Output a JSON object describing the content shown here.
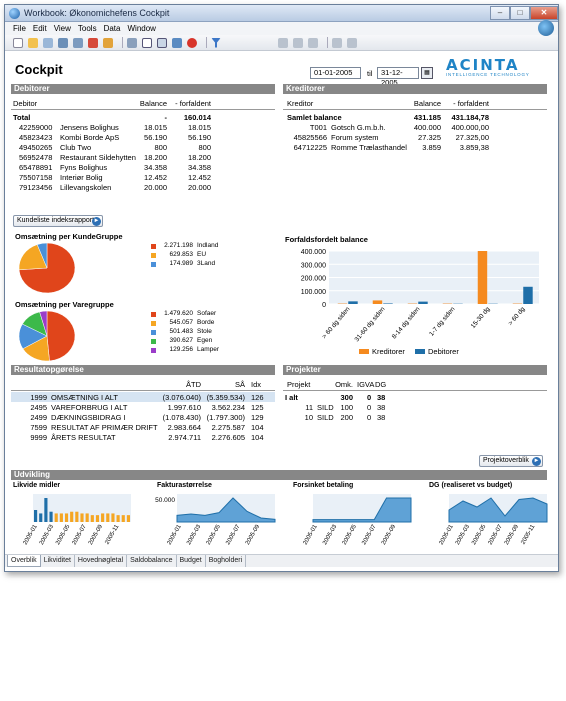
{
  "window": {
    "title": "Workbook: Økonomichefens Cockpit",
    "min": "–",
    "max": "□",
    "close": "✕"
  },
  "menu": [
    "File",
    "Edit",
    "View",
    "Tools",
    "Data",
    "Window"
  ],
  "page": {
    "title": "Cockpit",
    "date_from": "01-01-2005",
    "til": "til",
    "date_to": "31-12-2005",
    "logo_name": "ACINTA",
    "logo_tagline": "INTELLIGENCE TECHNOLOGY"
  },
  "debitorer": {
    "title": "Debitorer",
    "headers": [
      "Debitor",
      "Balance",
      "- forfaldent"
    ],
    "total": {
      "label": "Total",
      "balance": "-",
      "forfaldent": "160.014"
    },
    "rows": [
      {
        "id": "42259000",
        "name": "Jensens Bolighus",
        "balance": "18.015",
        "forfaldent": "18.015"
      },
      {
        "id": "45823423",
        "name": "Kombi Borde ApS",
        "balance": "56.190",
        "forfaldent": "56.190"
      },
      {
        "id": "49450265",
        "name": "Club Two",
        "balance": "800",
        "forfaldent": "800"
      },
      {
        "id": "56952478",
        "name": "Restaurant Sildehytten",
        "balance": "18.200",
        "forfaldent": "18.200"
      },
      {
        "id": "65478891",
        "name": "Fyns Bolighus",
        "balance": "34.358",
        "forfaldent": "34.358"
      },
      {
        "id": "75507158",
        "name": "Interiør Bolig",
        "balance": "12.452",
        "forfaldent": "12.452"
      },
      {
        "id": "79123456",
        "name": "Lillevangskolen",
        "balance": "20.000",
        "forfaldent": "20.000"
      }
    ],
    "button": "Kundeliste indeksrapport"
  },
  "kreditorer": {
    "title": "Kreditorer",
    "headers": [
      "Kreditor",
      "Balance",
      "- forfaldent"
    ],
    "total": {
      "label": "Samlet balance",
      "balance": "431.185",
      "forfaldent": "431.184,78"
    },
    "rows": [
      {
        "id": "T001",
        "name": "Gotsch G.m.b.h.",
        "balance": "400.000",
        "forfaldent": "400.000,00"
      },
      {
        "id": "45825566",
        "name": "Forum system",
        "balance": "27.325",
        "forfaldent": "27.325,00"
      },
      {
        "id": "64712225",
        "name": "Romme Trælasthandel",
        "balance": "3.859",
        "forfaldent": "3.859,38"
      }
    ]
  },
  "pie1": {
    "title": "Omsætning per KundeGruppe",
    "slices": [
      {
        "value": "2.271.198",
        "label": "Indland",
        "v": 2271198,
        "color": "#e0451b"
      },
      {
        "value": "629.853",
        "label": "EU",
        "v": 629853,
        "color": "#f5a623"
      },
      {
        "value": "174.989",
        "label": "3Land",
        "v": 174989,
        "color": "#4a90d9"
      }
    ]
  },
  "pie2": {
    "title": "Omsætning per Varegruppe",
    "slices": [
      {
        "value": "1.479.620",
        "label": "Sofaer",
        "v": 1479620,
        "color": "#e0451b"
      },
      {
        "value": "545.057",
        "label": "Borde",
        "v": 545057,
        "color": "#f5a623"
      },
      {
        "value": "501.483",
        "label": "Stole",
        "v": 501483,
        "color": "#4a90d9"
      },
      {
        "value": "390.627",
        "label": "Egen",
        "v": 390627,
        "color": "#3cb94a"
      },
      {
        "value": "129.256",
        "label": "Lamper",
        "v": 129256,
        "color": "#9b3cc9"
      }
    ]
  },
  "chart_data": {
    "type": "bar",
    "title": "Forfaldsfordelt balance",
    "categories": [
      "> 60 dg siden",
      "31-60 dg siden",
      "8-14 dg siden",
      "1-7 dg siden",
      "15-30 dg",
      "> 60 dg"
    ],
    "yticks": [
      "400.000",
      "300.000",
      "200.000",
      "100.000",
      "0"
    ],
    "ylim": [
      0,
      400000
    ],
    "series": [
      {
        "name": "Kreditorer",
        "color": "#f58a1f",
        "values": [
          3000,
          27000,
          3000,
          3000,
          400000,
          3000
        ]
      },
      {
        "name": "Debitorer",
        "color": "#1f6fa8",
        "values": [
          20000,
          4000,
          18000,
          2000,
          2000,
          130000
        ]
      }
    ],
    "legend": "bottom"
  },
  "resultat": {
    "title": "Resultatopgørelse",
    "headers": [
      "ÅTD",
      "SÅ",
      "Idx"
    ],
    "rows": [
      {
        "code": "1999",
        "label": "OMSÆTNING I ALT",
        "atd": "(3.076.040)",
        "sa": "(5.359.534)",
        "idx": "126"
      },
      {
        "code": "2495",
        "label": "VAREFORBRUG I ALT",
        "atd": "1.997.610",
        "sa": "3.562.234",
        "idx": "125"
      },
      {
        "code": "2499",
        "label": "DÆKNINGSBIDRAG I",
        "atd": "(1.078.430)",
        "sa": "(1.797.300)",
        "idx": "129"
      },
      {
        "code": "7599",
        "label": "RESULTAT AF PRIMÆR DRIFT",
        "atd": "2.983.664",
        "sa": "2.275.587",
        "idx": "104"
      },
      {
        "code": "9999",
        "label": "ÅRETS RESULTAT",
        "atd": "2.974.711",
        "sa": "2.276.605",
        "idx": "104"
      }
    ]
  },
  "projekter": {
    "title": "Projekter",
    "headers": [
      "Projekt",
      "Omk.",
      "IGVA",
      "DG"
    ],
    "total": {
      "label": "I alt",
      "omk": "300",
      "igva": "0",
      "dg": "38"
    },
    "rows": [
      {
        "id": "11",
        "name": "SILD",
        "omk": "100",
        "igva": "0",
        "dg": "38"
      },
      {
        "id": "10",
        "name": "SILD",
        "omk": "200",
        "igva": "0",
        "dg": "38"
      }
    ],
    "button": "Projektoverblik"
  },
  "udvikling": {
    "title": "Udvikling",
    "charts": [
      {
        "title": "Likvide midler",
        "ticks": [
          "2005-01",
          "2005-03",
          "2005-05",
          "2005-07",
          "2005-09",
          "2005-11"
        ],
        "bars": [
          7,
          5,
          14,
          6,
          5,
          5,
          5,
          6,
          6,
          5,
          5,
          4,
          4,
          5,
          5,
          5,
          4,
          4,
          4
        ],
        "ytick": ""
      },
      {
        "title": "Fakturastørrelse",
        "ticks": [
          "2005-01",
          "2005-03",
          "2005-05",
          "2005-07",
          "2005-09"
        ],
        "area": [
          5,
          6,
          5,
          7,
          18,
          8,
          3,
          2
        ],
        "ytick": "50.000"
      },
      {
        "title": "Forsinket betaling",
        "ticks": [
          "2005-01",
          "2005-03",
          "2005-05",
          "2005-07",
          "2005-09"
        ],
        "area": [
          2,
          2,
          2,
          2,
          2,
          2,
          20,
          20,
          20
        ],
        "ytick": ""
      },
      {
        "title": "DG (realiseret vs budget)",
        "ticks": [
          "2005-01",
          "2005-03",
          "2005-05",
          "2005-07",
          "2005-09",
          "2005-11"
        ],
        "area": [
          8,
          14,
          10,
          16,
          4,
          15,
          16,
          12
        ],
        "ytick": ""
      }
    ]
  },
  "tabs": [
    "Overblik",
    "Likviditet",
    "Hovednøgletal",
    "Saldobalance",
    "Budget",
    "Bogholderi"
  ]
}
